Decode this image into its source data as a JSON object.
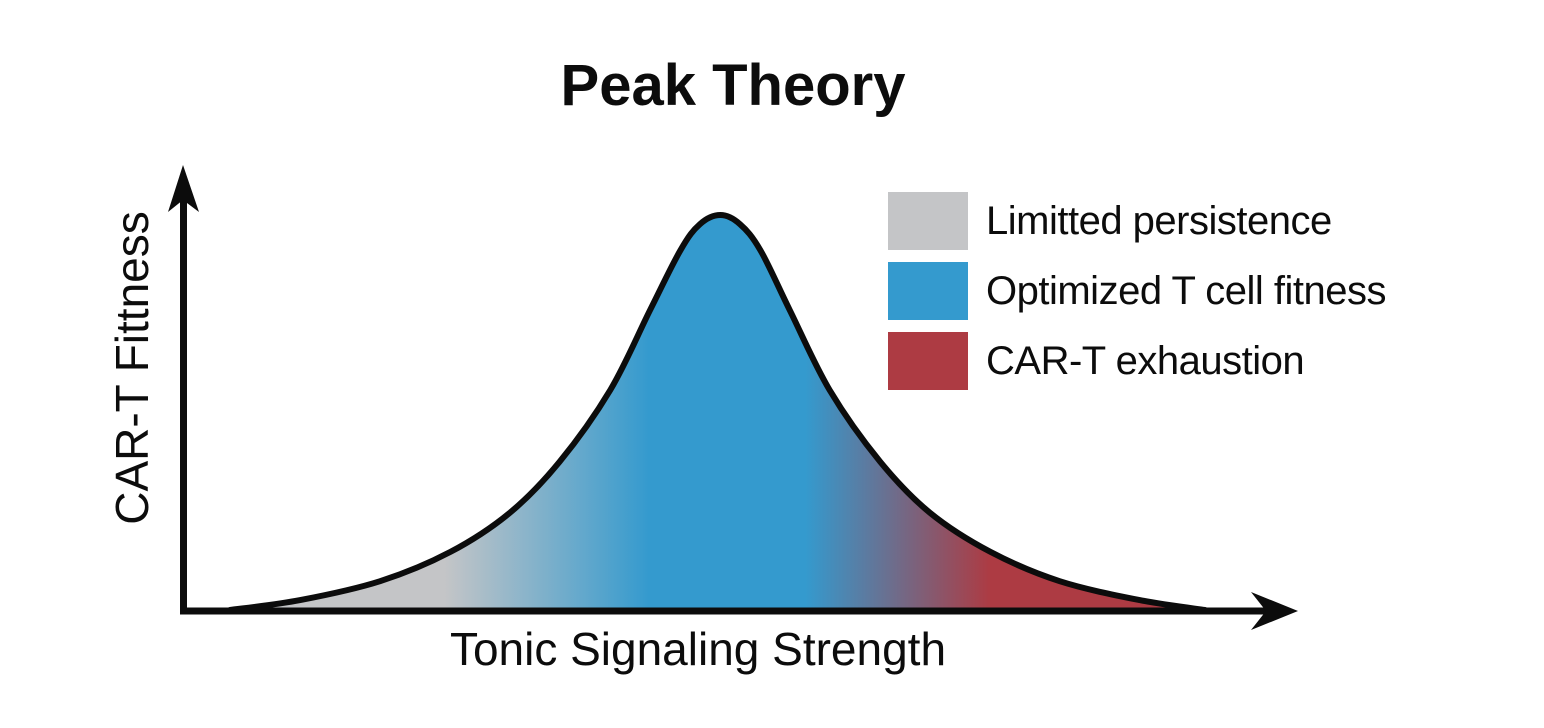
{
  "title": "Peak Theory",
  "colors": {
    "ink": "#0c0c0c",
    "background": "#ffffff",
    "gray": "#c4c5c7",
    "blue": "#349ace",
    "red": "#ad3b43"
  },
  "chart_data": {
    "type": "area",
    "title": "Peak Theory",
    "xlabel": "Tonic Signaling Strength",
    "ylabel": "CAR-T Fittness",
    "x_axis": {
      "label": "Tonic Signaling Strength",
      "ticks": [],
      "arrow": true
    },
    "y_axis": {
      "label": "CAR-T Fittness",
      "ticks": [],
      "arrow": true
    },
    "grid": false,
    "legend_position": "upper right",
    "legend": [
      {
        "label": "Limitted persistence",
        "color": "#c4c5c7"
      },
      {
        "label": "Optimized T cell fitness",
        "color": "#349ace"
      },
      {
        "label": "CAR-T exhaustion",
        "color": "#ad3b43"
      }
    ],
    "curve": {
      "shape": "bell",
      "x_range": [
        0,
        1
      ],
      "y_range": [
        0,
        1
      ],
      "points": [
        [
          0.0,
          0.0
        ],
        [
          0.072,
          0.025
        ],
        [
          0.154,
          0.073
        ],
        [
          0.226,
          0.147
        ],
        [
          0.287,
          0.246
        ],
        [
          0.338,
          0.375
        ],
        [
          0.39,
          0.557
        ],
        [
          0.431,
          0.76
        ],
        [
          0.462,
          0.911
        ],
        [
          0.482,
          0.977
        ],
        [
          0.503,
          1.0
        ],
        [
          0.523,
          0.977
        ],
        [
          0.544,
          0.911
        ],
        [
          0.574,
          0.76
        ],
        [
          0.615,
          0.557
        ],
        [
          0.667,
          0.375
        ],
        [
          0.718,
          0.246
        ],
        [
          0.78,
          0.147
        ],
        [
          0.851,
          0.073
        ],
        [
          0.933,
          0.025
        ],
        [
          1.0,
          0.0
        ]
      ]
    },
    "gradient_stops": [
      {
        "offset": 0.0,
        "color": "#c4c5c7"
      },
      {
        "offset": 0.22,
        "color": "#c4c5c7"
      },
      {
        "offset": 0.43,
        "color": "#349ace"
      },
      {
        "offset": 0.59,
        "color": "#349ace"
      },
      {
        "offset": 0.78,
        "color": "#ad3b43"
      },
      {
        "offset": 1.0,
        "color": "#ad3b43"
      }
    ]
  }
}
